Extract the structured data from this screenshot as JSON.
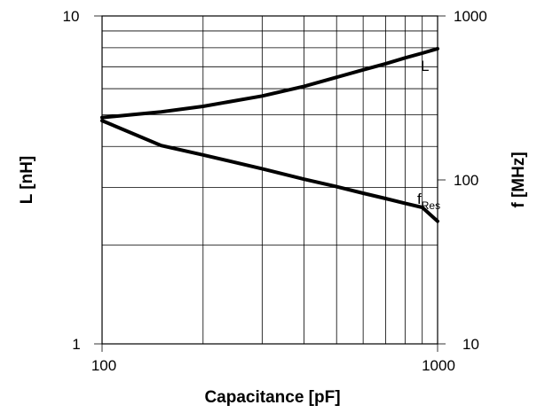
{
  "chart_data": {
    "type": "line",
    "x_scale": "log",
    "y_scale": "log",
    "y2_scale": "log",
    "grid": true,
    "xlabel": "Capacitance [pF]",
    "ylabel": "L [nH]",
    "y2label": "f [MHz]",
    "xlim": [
      100,
      1000
    ],
    "ylim": [
      1,
      10
    ],
    "y2lim": [
      10,
      1000
    ],
    "x_ticks": [
      "100",
      "1000"
    ],
    "y_ticks": [
      "1",
      "10"
    ],
    "y2_ticks": [
      "10",
      "100",
      "1000"
    ],
    "series": [
      {
        "name": "L",
        "axis": "left",
        "x": [
          100,
          150,
          200,
          300,
          400,
          500,
          600,
          700,
          800,
          900,
          1000
        ],
        "y": [
          4.9,
          5.1,
          5.3,
          5.7,
          6.1,
          6.5,
          6.85,
          7.15,
          7.45,
          7.7,
          7.95
        ]
      },
      {
        "name": "f",
        "name_subscript": "Res",
        "axis": "right",
        "x": [
          100,
          150,
          200,
          300,
          400,
          500,
          600,
          700,
          800,
          900,
          1000
        ],
        "y": [
          230,
          162,
          142,
          117,
          101,
          91,
          83,
          77,
          72,
          68,
          56
        ]
      }
    ]
  }
}
